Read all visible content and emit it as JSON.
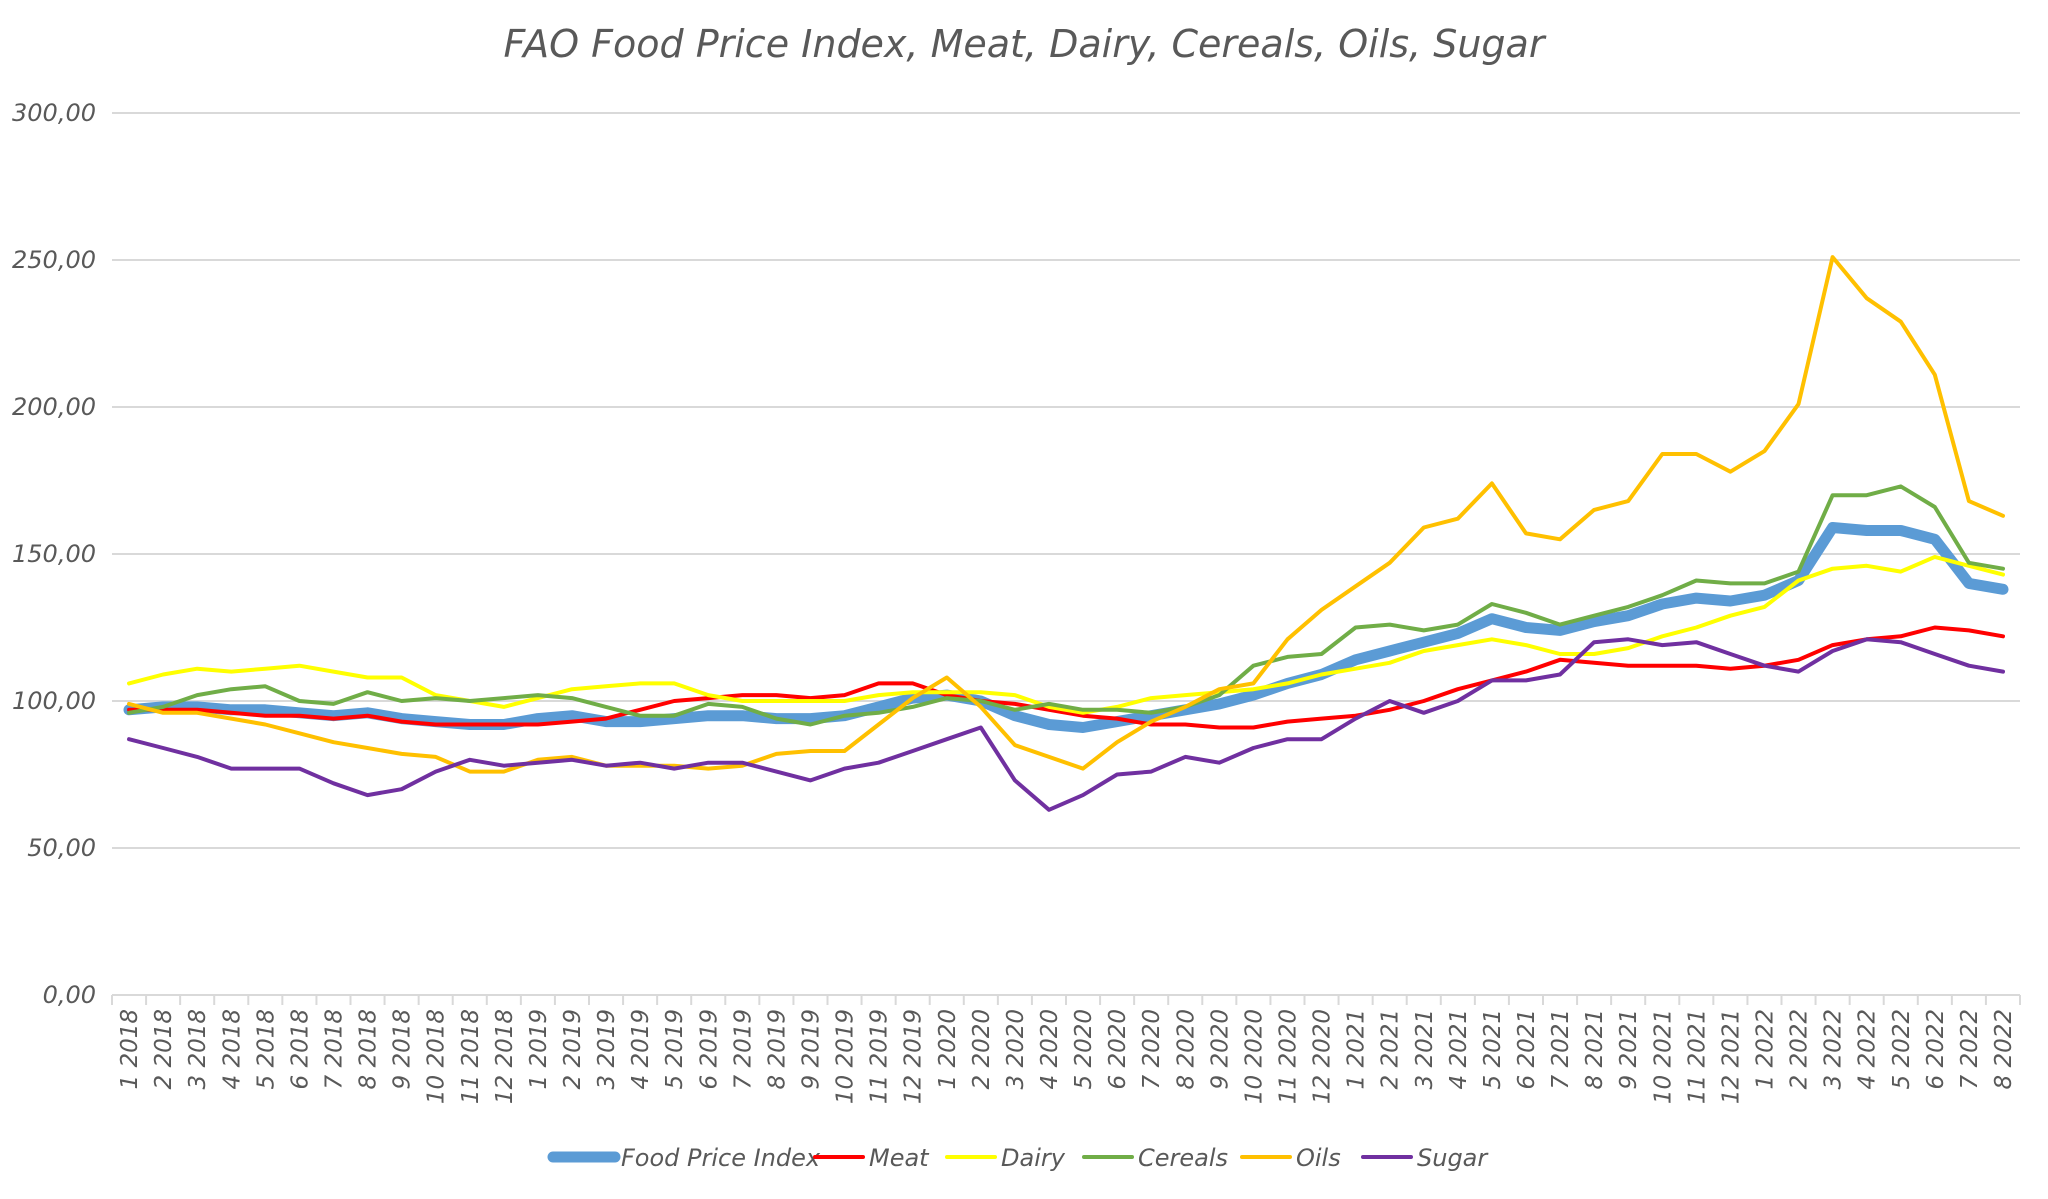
{
  "chart_data": {
    "type": "line",
    "title": "FAO Food Price Index, Meat, Dairy, Cereals, Oils, Sugar",
    "xlabel": "",
    "ylabel": "",
    "ylim": [
      0,
      300
    ],
    "y_ticks": [
      "0,00",
      "50,00",
      "100,00",
      "150,00",
      "200,00",
      "250,00",
      "300,00"
    ],
    "y_tick_values": [
      0,
      50,
      100,
      150,
      200,
      250,
      300
    ],
    "grid": true,
    "legend_position": "bottom",
    "categories": [
      "1 2018",
      "2 2018",
      "3 2018",
      "4 2018",
      "5 2018",
      "6 2018",
      "7 2018",
      "8 2018",
      "9 2018",
      "10 2018",
      "11 2018",
      "12 2018",
      "1 2019",
      "2 2019",
      "3 2019",
      "4 2019",
      "5 2019",
      "6 2019",
      "7 2019",
      "8 2019",
      "9 2019",
      "10 2019",
      "11 2019",
      "12 2019",
      "1 2020",
      "2 2020",
      "3 2020",
      "4 2020",
      "5 2020",
      "6 2020",
      "7 2020",
      "8 2020",
      "9 2020",
      "10 2020",
      "11 2020",
      "12 2020",
      "1 2021",
      "2 2021",
      "3 2021",
      "4 2021",
      "5 2021",
      "6 2021",
      "7 2021",
      "8 2021",
      "9 2021",
      "10 2021",
      "11 2021",
      "12 2021",
      "1 2022",
      "2 2022",
      "3 2022",
      "4 2022",
      "5 2022",
      "6 2022",
      "7 2022",
      "8 2022"
    ],
    "series": [
      {
        "name": "Food Price Index",
        "color": "#5b9bd5",
        "values": [
          97,
          98,
          98,
          97,
          97,
          96,
          95,
          96,
          94,
          93,
          92,
          92,
          94,
          95,
          93,
          93,
          94,
          95,
          95,
          94,
          94,
          95,
          98,
          101,
          102,
          100,
          95,
          92,
          91,
          93,
          95,
          97,
          99,
          102,
          106,
          109,
          114,
          117,
          120,
          123,
          128,
          125,
          124,
          127,
          129,
          133,
          135,
          134,
          136,
          141,
          159,
          158,
          158,
          155,
          140,
          138
        ]
      },
      {
        "name": "Meat",
        "color": "#ff0000",
        "values": [
          97,
          97,
          97,
          96,
          95,
          95,
          94,
          95,
          93,
          92,
          92,
          92,
          92,
          93,
          94,
          97,
          100,
          101,
          102,
          102,
          101,
          102,
          106,
          106,
          102,
          100,
          99,
          97,
          95,
          94,
          92,
          92,
          91,
          91,
          93,
          94,
          95,
          97,
          100,
          104,
          107,
          110,
          114,
          113,
          112,
          112,
          112,
          111,
          112,
          114,
          119,
          121,
          122,
          125,
          124,
          122
        ]
      },
      {
        "name": "Dairy",
        "color": "#ffff00",
        "values": [
          106,
          109,
          111,
          110,
          111,
          112,
          110,
          108,
          108,
          102,
          100,
          98,
          101,
          104,
          105,
          106,
          106,
          102,
          100,
          100,
          100,
          100,
          102,
          103,
          103,
          103,
          102,
          98,
          96,
          98,
          101,
          102,
          103,
          104,
          106,
          109,
          111,
          113,
          117,
          119,
          121,
          119,
          116,
          116,
          118,
          122,
          125,
          129,
          132,
          141,
          145,
          146,
          144,
          149,
          146,
          143
        ]
      },
      {
        "name": "Cereals",
        "color": "#70ad47",
        "values": [
          96,
          98,
          102,
          104,
          105,
          100,
          99,
          103,
          100,
          101,
          100,
          101,
          102,
          101,
          98,
          95,
          95,
          99,
          98,
          94,
          92,
          95,
          96,
          98,
          101,
          100,
          97,
          99,
          97,
          97,
          96,
          98,
          102,
          112,
          115,
          116,
          125,
          126,
          124,
          126,
          133,
          130,
          126,
          129,
          132,
          136,
          141,
          140,
          140,
          144,
          170,
          170,
          173,
          166,
          147,
          145
        ]
      },
      {
        "name": "Oils",
        "color": "#ffc000",
        "values": [
          99,
          96,
          96,
          94,
          92,
          89,
          86,
          84,
          82,
          81,
          76,
          76,
          80,
          81,
          78,
          78,
          78,
          77,
          78,
          82,
          83,
          83,
          92,
          101,
          108,
          98,
          85,
          81,
          77,
          86,
          93,
          98,
          104,
          106,
          121,
          131,
          139,
          147,
          159,
          162,
          174,
          157,
          155,
          165,
          168,
          184,
          184,
          178,
          185,
          201,
          251,
          237,
          229,
          211,
          168,
          163
        ]
      },
      {
        "name": "Sugar",
        "color": "#7030a0",
        "values": [
          87,
          84,
          81,
          77,
          77,
          77,
          72,
          68,
          70,
          76,
          80,
          78,
          79,
          80,
          78,
          79,
          77,
          79,
          79,
          76,
          73,
          77,
          79,
          83,
          87,
          91,
          73,
          63,
          68,
          75,
          76,
          81,
          79,
          84,
          87,
          87,
          94,
          100,
          96,
          100,
          107,
          107,
          109,
          120,
          121,
          119,
          120,
          116,
          112,
          110,
          117,
          121,
          120,
          116,
          112,
          110
        ]
      }
    ]
  }
}
